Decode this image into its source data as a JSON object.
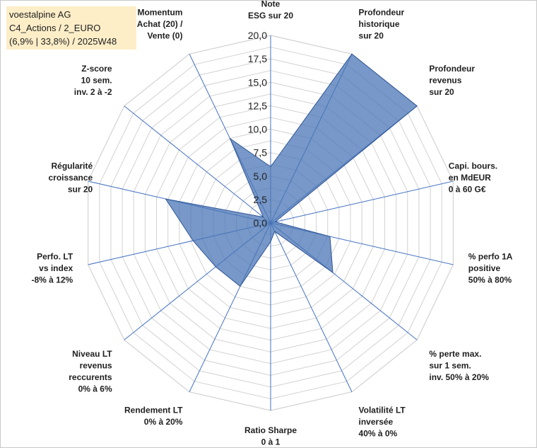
{
  "chart_data": {
    "type": "radar",
    "title_lines": [
      "voestalpine AG",
      "C4_Actions / 2_EURO",
      "(6,9% | 33,8%) / 2025W48"
    ],
    "r_range": [
      0,
      20
    ],
    "r_ticks": [
      "0,0",
      "2,5",
      "5,0",
      "7,5",
      "10,0",
      "12,5",
      "15,0",
      "17,5",
      "20,0"
    ],
    "grid": true,
    "categories": [
      [
        "Note",
        "ESG sur 20"
      ],
      [
        "Profondeur",
        "historique",
        "sur 20"
      ],
      [
        "Profondeur",
        "revenus",
        "sur 20"
      ],
      [
        "Capi. bours.",
        "en MdEUR",
        "0 à 60 G€"
      ],
      [
        "% perfo 1A",
        "positive",
        "50% à 80%"
      ],
      [
        "% perte max.",
        "sur 1 sem.",
        "inv. 50% à 20%"
      ],
      [
        "Volatilité LT",
        "inversée",
        "40% à 0%"
      ],
      [
        "Ratio Sharpe",
        "0 à 1"
      ],
      [
        "Rendement LT",
        "0% à 20%"
      ],
      [
        "Niveau LT",
        "revenus",
        "reccurents",
        "0% à 6%"
      ],
      [
        "Perfo. LT",
        "vs index",
        "-8% à 12%"
      ],
      [
        "Régularité",
        "croissance",
        "sur 20"
      ],
      [
        "Z-score",
        "10 sem.",
        "inv. 2 à -2"
      ],
      [
        "Momentum",
        "Achat (20) /",
        "Vente (0)"
      ]
    ],
    "series": [
      {
        "values": [
          6,
          20,
          20,
          0.5,
          6.5,
          8.5,
          1,
          2,
          7.5,
          7.5,
          8.5,
          11.5,
          1,
          10
        ]
      }
    ],
    "colors": {
      "fill": "#4a75b6",
      "grid": "#d2d2d2",
      "spoke": "#4472c4"
    }
  }
}
